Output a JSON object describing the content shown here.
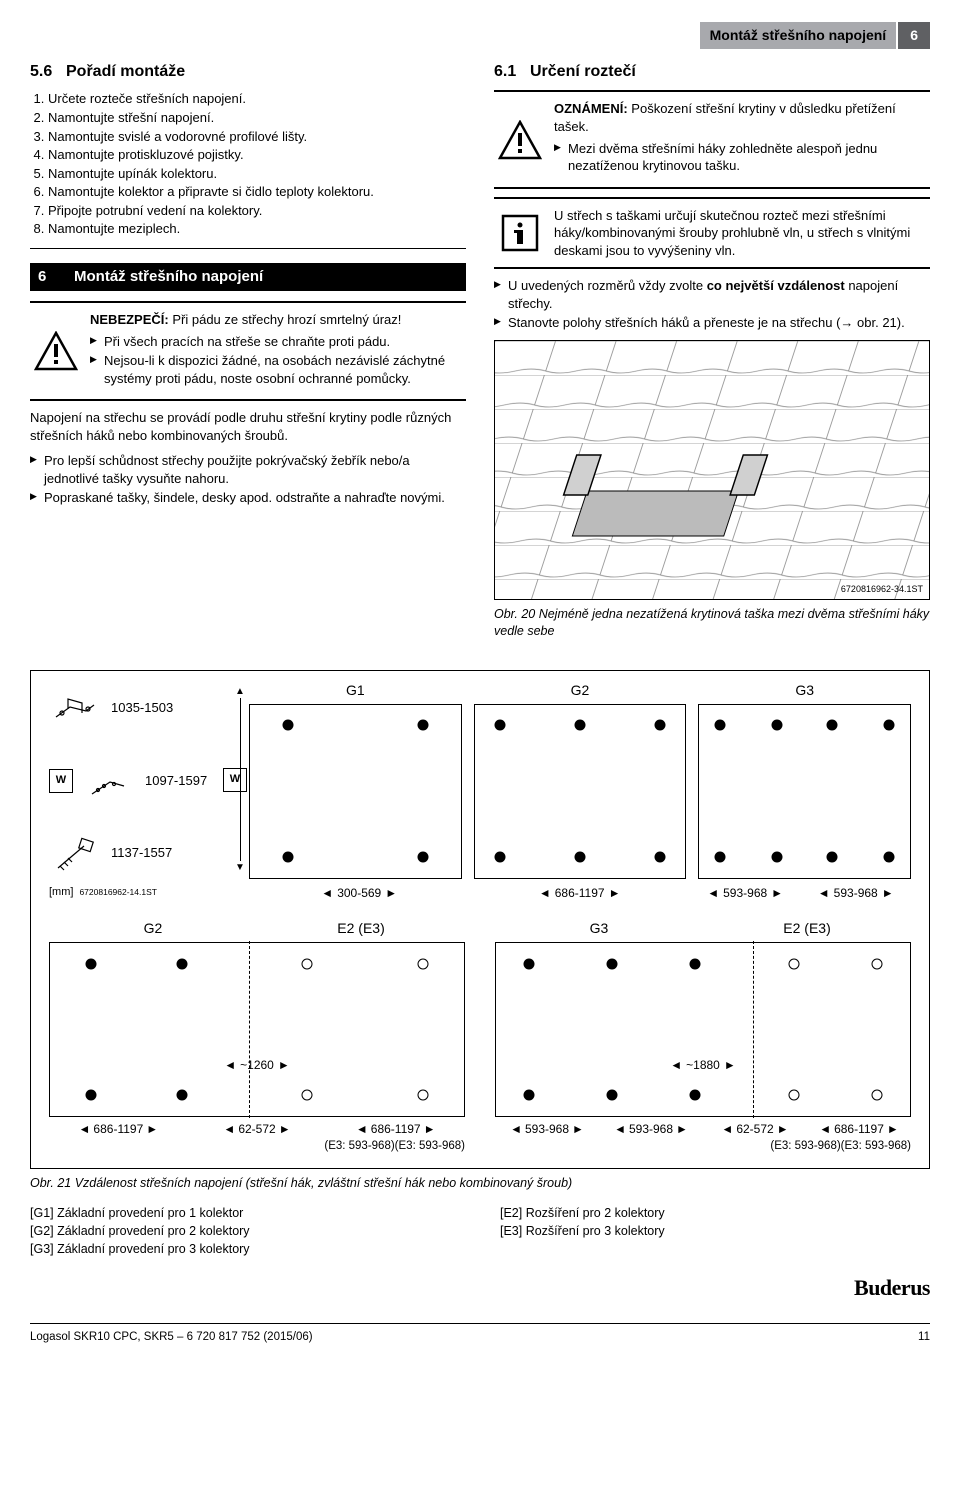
{
  "header": {
    "title": "Montáž střešního napojení",
    "num": "6"
  },
  "s56": {
    "num": "5.6",
    "title": "Pořadí montáže",
    "steps": [
      "Určete rozteče střešních napojení.",
      "Namontujte střešní napojení.",
      "Namontujte svislé a vodorovné profilové lišty.",
      "Namontujte protiskluzové pojistky.",
      "Namontujte upínák kolektoru.",
      "Namontujte kolektor a připravte si čidlo teploty kolektoru.",
      "Připojte potrubní vedení na kolektory.",
      "Namontujte meziplech."
    ]
  },
  "s6": {
    "num": "6",
    "title": "Montáž střešního napojení"
  },
  "danger": {
    "label": "NEBEZPEČÍ:",
    "text": "Při pádu ze střechy hrozí smrtelný úraz!",
    "items": [
      "Při všech pracích na střeše se chraňte proti pádu.",
      "Nejsou-li k dispozici žádné, na osobách nezávislé záchytné systémy proti pádu, noste osobní ochranné pomůcky."
    ]
  },
  "para1": "Napojení na střechu se provádí podle druhu střešní krytiny podle různých střešních háků nebo kombinovaných šroubů.",
  "list1": [
    "Pro lepší schůdnost střechy použijte pokrývačský žebřík nebo/a jednotlivé tašky vysuňte nahoru.",
    "Popraskané tašky, šindele, desky apod. odstraňte a nahraďte novými."
  ],
  "s61": {
    "num": "6.1",
    "title": "Určení roztečí"
  },
  "notice": {
    "label": "OZNÁMENÍ:",
    "text": "Poškození střešní krytiny v důsledku přetížení tašek.",
    "items": [
      "Mezi dvěma střešními háky zohledněte alespoň jednu nezatíženou krytinovou tašku."
    ]
  },
  "info": "U střech s taškami určují skutečnou rozteč mezi střešními háky/kombinovanými šrouby prohlubně vln, u střech s vlnitými deskami jsou to vyvýšeniny vln.",
  "list2": [
    "U uvedených rozměrů vždy zvolte <b>co největší vzdálenost</b> napojení střechy.",
    "Stanovte polohy střešních háků a přeneste je na střechu (→ obr.  21)."
  ],
  "fig20": {
    "id": "6720816962-34.1ST",
    "cap": "Obr. 20  Nejméně jedna nezatížená krytinová taška mezi dvěma střešními háky vedle sebe"
  },
  "diagram": {
    "rows": [
      {
        "range": "1035-1503"
      },
      {
        "range": "1097-1597",
        "w": "W"
      },
      {
        "range": "1137-1557"
      }
    ],
    "unit": "[mm]",
    "figid": "6720816962-14.1ST",
    "panels": [
      "G1",
      "G2",
      "G3"
    ],
    "dims_top": [
      "300-569",
      "686-1197",
      "593-968",
      "593-968"
    ],
    "w_label": "W",
    "bot": [
      {
        "labels": [
          "G2",
          "E2 (E3)"
        ],
        "inner": "~1260",
        "dims": [
          "686-1197",
          "62-572",
          "686-1197"
        ],
        "sub": "(E3: 593-968)(E3: 593-968)",
        "dash_pct": 48
      },
      {
        "labels": [
          "G3",
          "E2 (E3)"
        ],
        "inner": "~1880",
        "dims": [
          "593-968",
          "593-968",
          "62-572",
          "686-1197"
        ],
        "sub": "(E3: 593-968)(E3: 593-968)",
        "dash_pct": 62
      }
    ]
  },
  "fig21cap": "Obr. 21  Vzdálenost střešních napojení (střešní hák, zvláštní střešní hák nebo kombinovaný šroub)",
  "legend": {
    "left": [
      "[G1]  Základní provedení pro 1 kolektor",
      "[G2]  Základní provedení pro 2 kolektory",
      "[G3]  Základní provedení pro 3 kolektory"
    ],
    "right": [
      "[E2]  Rozšíření pro 2 kolektory",
      "[E3]  Rozšíření pro 3 kolektory"
    ]
  },
  "footer": {
    "doc": "Logasol SKR10 CPC, SKR5 – 6 720 817 752 (2015/06)",
    "page": "11",
    "logo": "Buderus"
  }
}
